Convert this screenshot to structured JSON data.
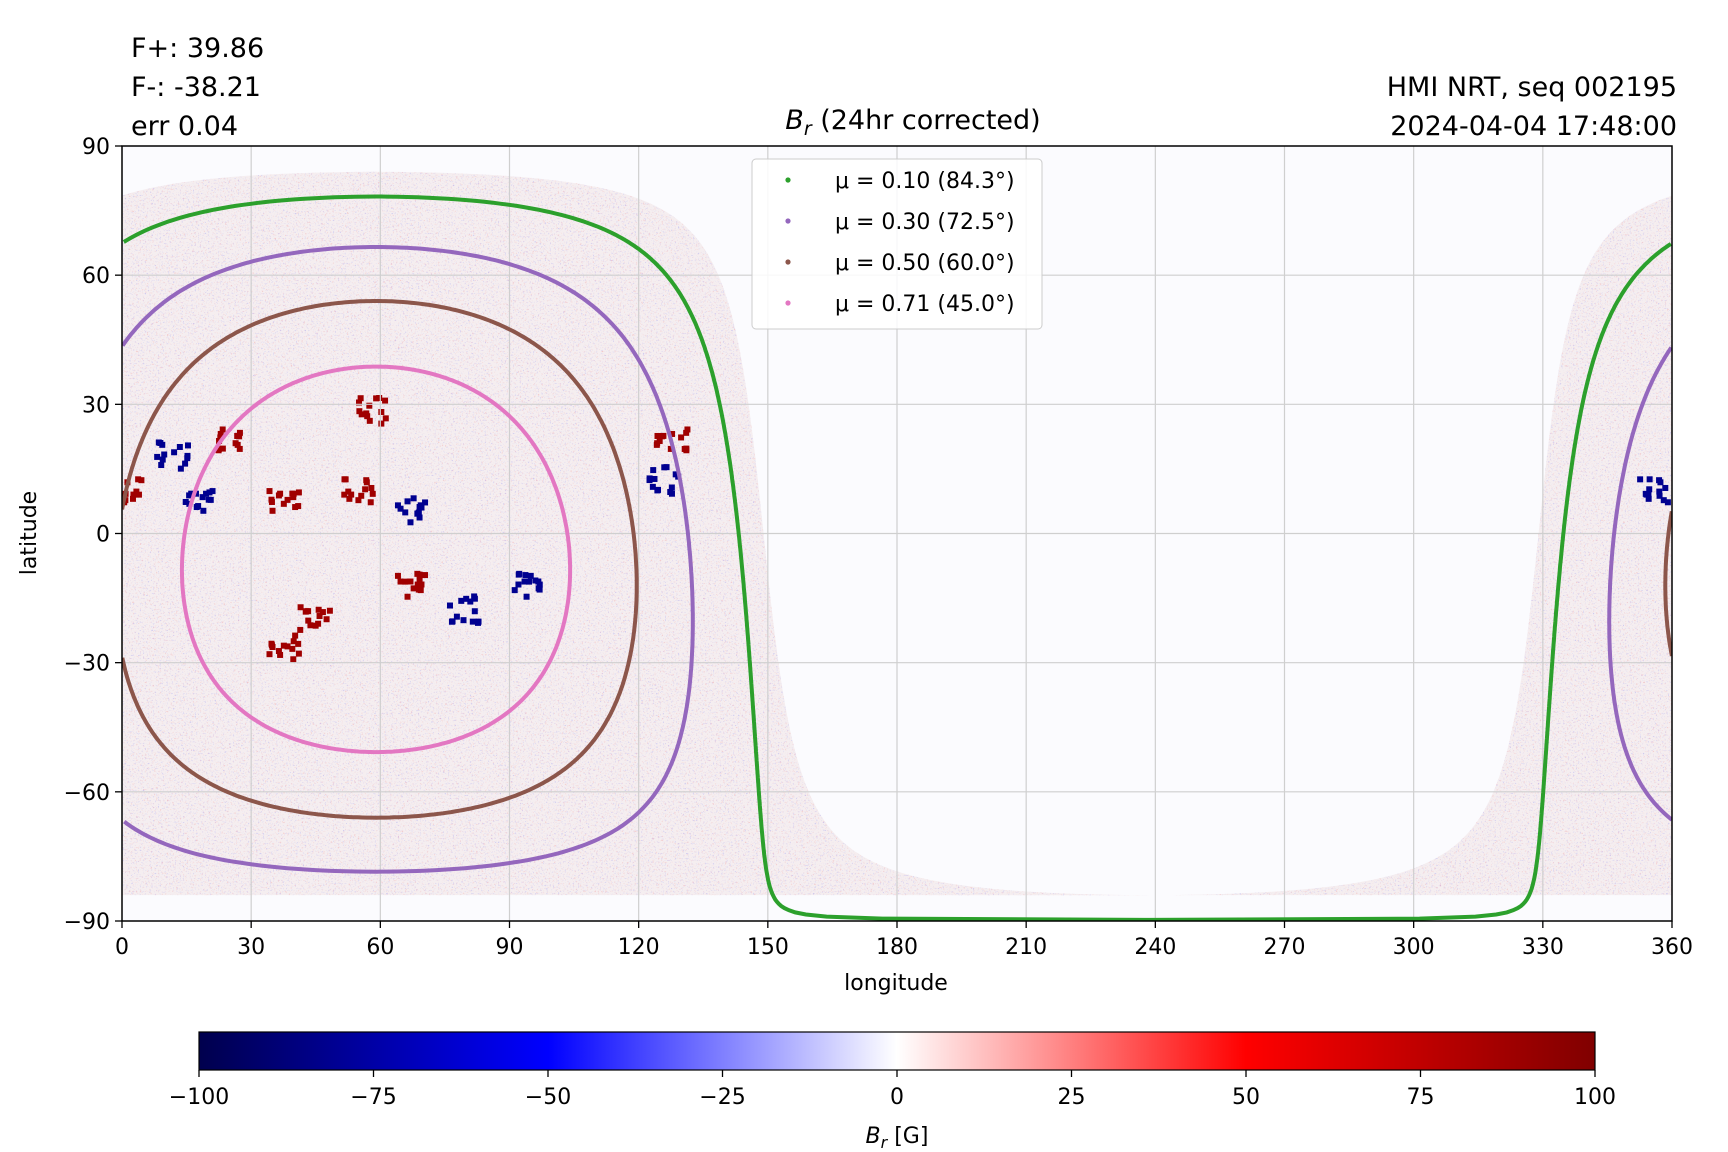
{
  "header": {
    "flux_pos": "F+: 39.86",
    "flux_neg": "F-: -38.21",
    "error": "err 0.04",
    "source": "HMI NRT, seq 002195",
    "timestamp": "2024-04-04 17:48:00"
  },
  "chart_data": {
    "type": "heatmap",
    "title": "B_r (24hr corrected)",
    "title_symbol": "B",
    "title_subscript": "r",
    "title_rest": " (24hr corrected)",
    "xlabel": "longitude",
    "ylabel": "latitude",
    "xlim": [
      0,
      360
    ],
    "ylim": [
      -90,
      90
    ],
    "xticks": [
      0,
      30,
      60,
      90,
      120,
      150,
      180,
      210,
      240,
      270,
      300,
      330,
      360
    ],
    "yticks": [
      -90,
      -60,
      -30,
      0,
      30,
      60,
      90
    ],
    "ytick_labels": [
      "−90",
      "−60",
      "−30",
      "0",
      "30",
      "60",
      "90"
    ],
    "grid": true,
    "legend_position": "top-center",
    "disk_center_longitude": 59,
    "disk_center_latitude": -6,
    "series": [
      {
        "name": "μ = 0.10 (84.3°)",
        "mu": 0.1,
        "angle_deg": 84.3,
        "color": "#2ca02c"
      },
      {
        "name": "μ = 0.30 (72.5°)",
        "mu": 0.3,
        "angle_deg": 72.5,
        "color": "#9467bd"
      },
      {
        "name": "μ = 0.50 (60.0°)",
        "mu": 0.5,
        "angle_deg": 60.0,
        "color": "#8c564b"
      },
      {
        "name": "μ = 0.71 (45.0°)",
        "mu": 0.71,
        "angle_deg": 45.0,
        "color": "#e377c2"
      }
    ],
    "colorbar": {
      "label": "B_r [G]",
      "label_symbol": "B",
      "label_subscript": "r",
      "label_rest": " [G]",
      "vmin": -100,
      "vmax": 100,
      "ticks": [
        -100,
        -75,
        -50,
        -25,
        0,
        25,
        50,
        75,
        100
      ],
      "tick_labels": [
        "−100",
        "−75",
        "−50",
        "−25",
        "0",
        "25",
        "50",
        "75",
        "100"
      ],
      "colormap": "seismic",
      "colors": [
        "#00004d",
        "#0000ff",
        "#ffffff",
        "#ff0000",
        "#800000"
      ]
    },
    "active_regions": [
      {
        "lon": 25,
        "lat": 22,
        "polarity": "positive"
      },
      {
        "lon": 38,
        "lat": 8,
        "polarity": "positive"
      },
      {
        "lon": 12,
        "lat": 18,
        "polarity": "negative"
      },
      {
        "lon": 18,
        "lat": 8,
        "polarity": "negative"
      },
      {
        "lon": 55,
        "lat": 10,
        "polarity": "positive"
      },
      {
        "lon": 68,
        "lat": 5,
        "polarity": "negative"
      },
      {
        "lon": 58,
        "lat": 28,
        "polarity": "positive"
      },
      {
        "lon": 45,
        "lat": -20,
        "polarity": "positive"
      },
      {
        "lon": 38,
        "lat": -27,
        "polarity": "positive"
      },
      {
        "lon": 68,
        "lat": -12,
        "polarity": "positive"
      },
      {
        "lon": 80,
        "lat": -18,
        "polarity": "negative"
      },
      {
        "lon": 95,
        "lat": -12,
        "polarity": "negative"
      },
      {
        "lon": 128,
        "lat": 22,
        "polarity": "positive"
      },
      {
        "lon": 126,
        "lat": 12,
        "polarity": "negative"
      },
      {
        "lon": 356,
        "lat": 10,
        "polarity": "negative"
      },
      {
        "lon": 2,
        "lat": 10,
        "polarity": "positive"
      }
    ]
  }
}
